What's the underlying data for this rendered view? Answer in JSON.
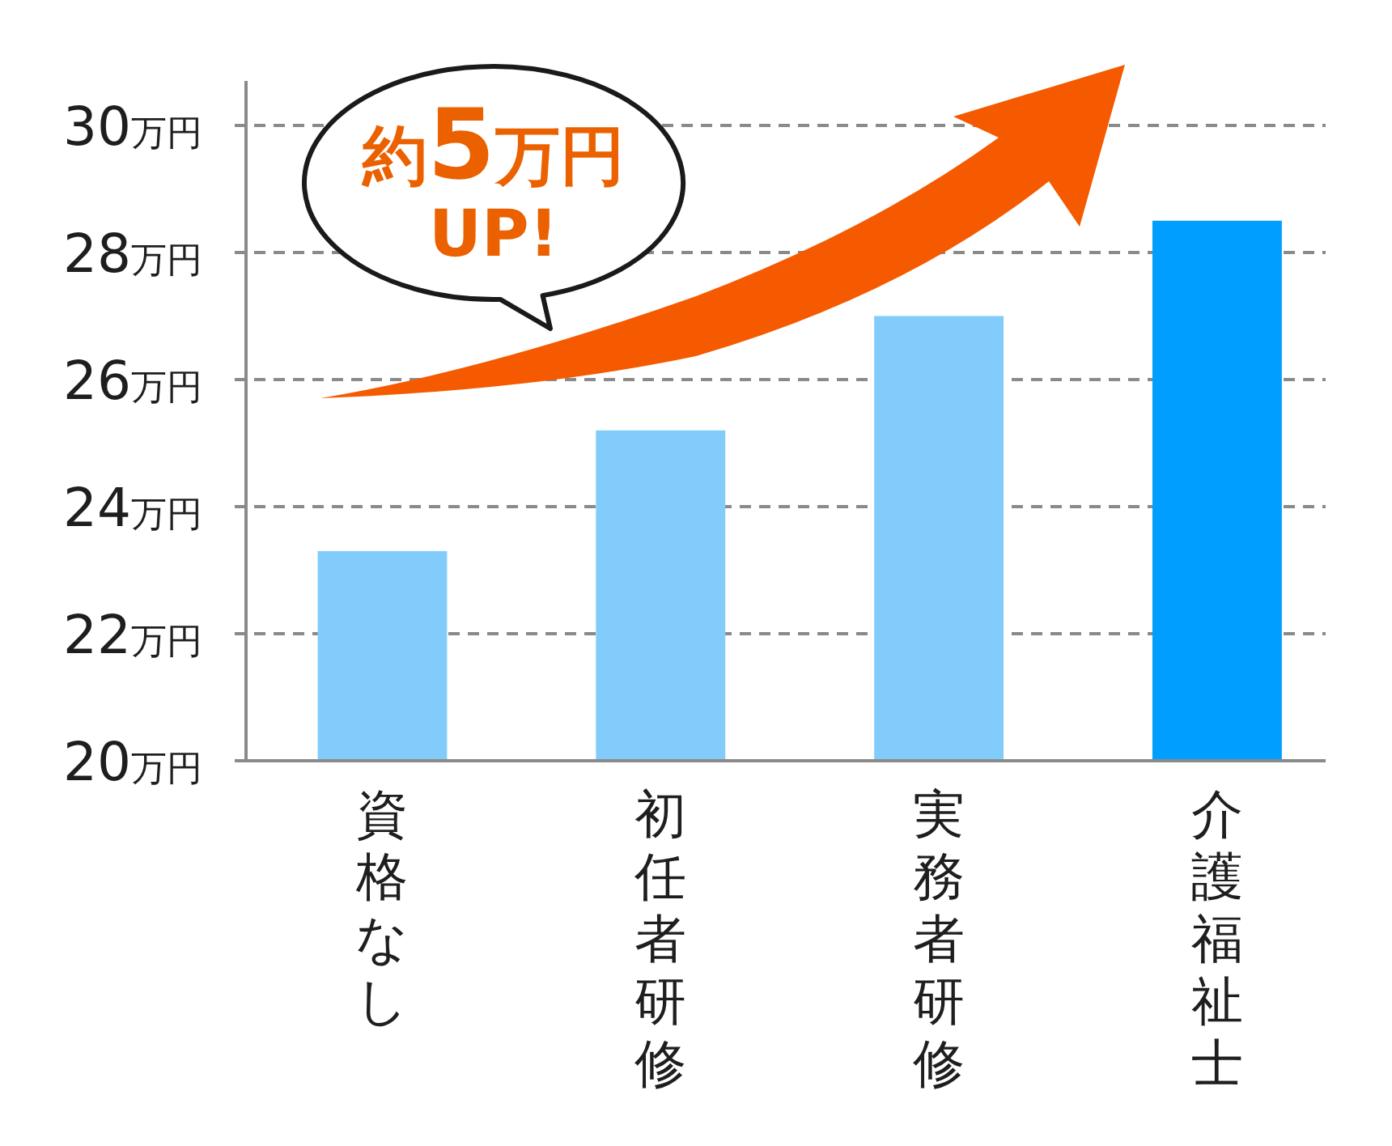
{
  "chart_data": {
    "type": "bar",
    "categories": [
      "資格なし",
      "初任者研修",
      "実務者研修",
      "介護福祉士"
    ],
    "values": [
      23.3,
      25.2,
      27.0,
      28.5
    ],
    "colors": [
      "#82CCFC",
      "#82CCFC",
      "#82CCFC",
      "#009FFF"
    ],
    "ylim": [
      20,
      30.7
    ],
    "yticks": [
      {
        "value": 20,
        "label": "20万円"
      },
      {
        "value": 22,
        "label": "22万円"
      },
      {
        "value": 24,
        "label": "24万円"
      },
      {
        "value": 26,
        "label": "26万円"
      },
      {
        "value": 28,
        "label": "28万円"
      },
      {
        "value": 30,
        "label": "30万円"
      }
    ],
    "grid": "y",
    "annotations": [
      "約5万円\nUP!"
    ]
  }
}
